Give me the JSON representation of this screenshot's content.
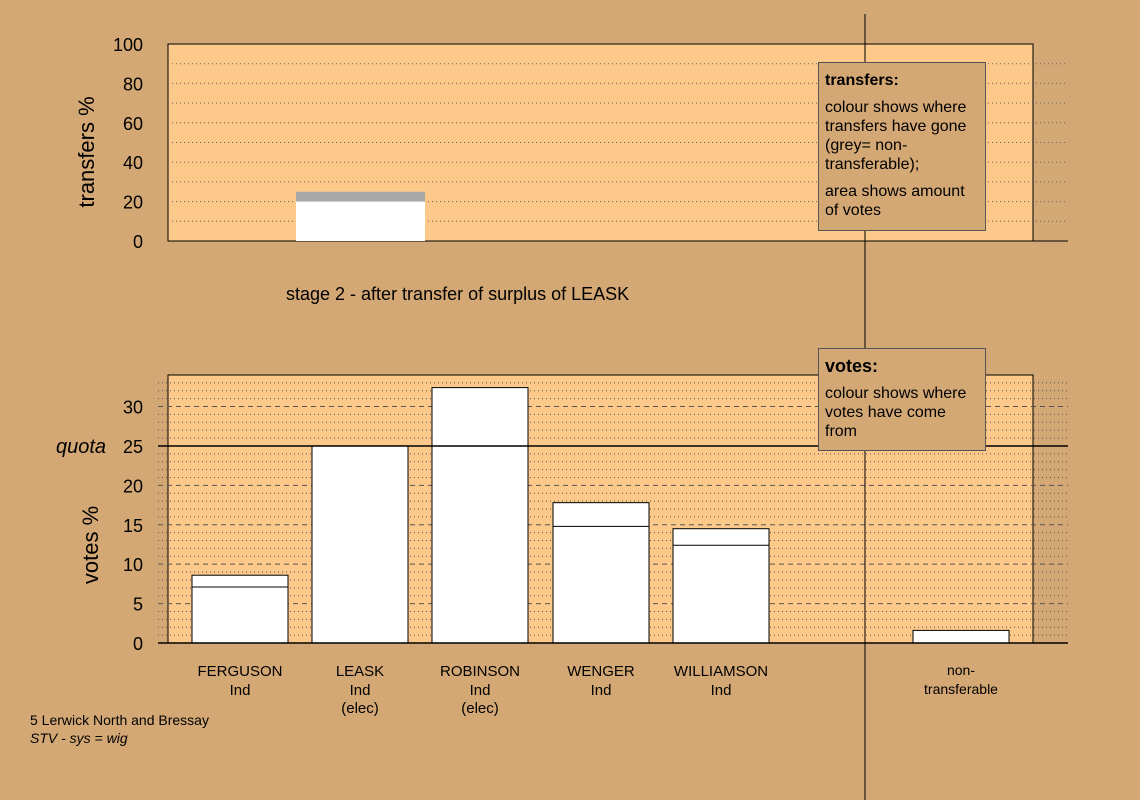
{
  "stage_title": "stage 2 - after transfer of surplus of LEASK",
  "transfers_legend": {
    "title": "transfers:",
    "line1": "colour shows where transfers have gone (grey= non-transferable);",
    "line2": "area shows amount of votes"
  },
  "votes_legend": {
    "title": "votes:",
    "line1": "colour shows where votes have come from"
  },
  "footer": {
    "ward": "5 Lerwick North and Bressay",
    "system": "STV - sys = wig"
  },
  "colors": {
    "background": "#D4A875",
    "plot_fill": "#FCC98B",
    "bar": "#FFFFFF",
    "grey": "#A9A9A9"
  },
  "chart_data": [
    {
      "type": "bar",
      "ylabel": "transfers %",
      "ylim": [
        0,
        100
      ],
      "yticks": [
        0,
        20,
        40,
        60,
        80,
        100
      ],
      "bars": [
        {
          "candidate": "LEASK",
          "transfer_total": 25,
          "to_candidates": 20,
          "non_transferable": 5
        }
      ]
    },
    {
      "type": "bar",
      "ylabel": "votes %",
      "ylim": [
        0,
        34
      ],
      "yticks": [
        0,
        5,
        10,
        15,
        20,
        25,
        30
      ],
      "quota": 25,
      "quota_label": "quota",
      "categories": [
        {
          "name": "FERGUSON",
          "party": "Ind",
          "status": ""
        },
        {
          "name": "LEASK",
          "party": "Ind",
          "status": "(elec)"
        },
        {
          "name": "ROBINSON",
          "party": "Ind",
          "status": "(elec)"
        },
        {
          "name": "WENGER",
          "party": "Ind",
          "status": ""
        },
        {
          "name": "WILLIAMSON",
          "party": "Ind",
          "status": ""
        },
        {
          "name": "non-transferable",
          "party": "",
          "status": ""
        }
      ],
      "first_preference": [
        7.1,
        25.0,
        32.4,
        14.8,
        12.4,
        0
      ],
      "after_transfer": [
        8.6,
        25.0,
        32.4,
        17.8,
        14.5,
        1.6
      ]
    }
  ]
}
